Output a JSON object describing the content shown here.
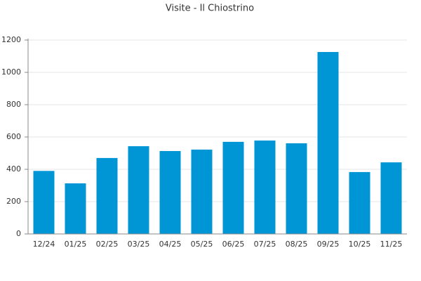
{
  "chart_data": {
    "type": "bar",
    "title": "Visite - Il Chiostrino",
    "categories": [
      "12/24",
      "01/25",
      "02/25",
      "03/25",
      "04/25",
      "05/25",
      "06/25",
      "07/25",
      "08/25",
      "09/25",
      "10/25",
      "11/25"
    ],
    "values": [
      390,
      313,
      470,
      543,
      513,
      522,
      570,
      578,
      561,
      1126,
      383,
      443
    ],
    "color": "#0096d6",
    "ylim": [
      0,
      1200
    ],
    "yticks": [
      0,
      200,
      400,
      600,
      800,
      1000,
      1200
    ],
    "grid": true
  }
}
